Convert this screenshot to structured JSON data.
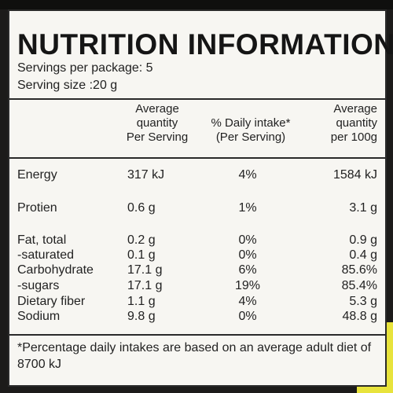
{
  "title": "NUTRITION INFORMATION",
  "servings_per_package": "Servings per package: 5",
  "serving_size": "Serving size :20 g",
  "headers": {
    "per_serving": "Average\nquantity\nPer Serving",
    "daily_intake": "% Daily intake*\n(Per Serving)",
    "per_100g": "Average\nquantity\nper 100g"
  },
  "rows": [
    {
      "name": "Energy",
      "per_serving": "317 kJ",
      "daily": "4%",
      "per_100g": "1584 kJ"
    },
    {
      "name": "Protien",
      "per_serving": "0.6 g",
      "daily": "1%",
      "per_100g": "3.1 g"
    },
    {
      "name": "Fat, total",
      "per_serving": "0.2 g",
      "daily": "0%",
      "per_100g": "0.9 g"
    },
    {
      "name": "-saturated",
      "per_serving": "0.1 g",
      "daily": "0%",
      "per_100g": "0.4 g"
    },
    {
      "name": "Carbohydrate",
      "per_serving": "17.1 g",
      "daily": "6%",
      "per_100g": "85.6%"
    },
    {
      "name": "-sugars",
      "per_serving": "17.1 g",
      "daily": "19%",
      "per_100g": "85.4%"
    },
    {
      "name": "Dietary fiber",
      "per_serving": "1.1 g",
      "daily": "4%",
      "per_100g": "5.3 g"
    },
    {
      "name": "Sodium",
      "per_serving": "9.8 g",
      "daily": "0%",
      "per_100g": "48.8 g"
    }
  ],
  "footnote": "*Percentage daily intakes are based on an average adult diet of 8700 kJ"
}
